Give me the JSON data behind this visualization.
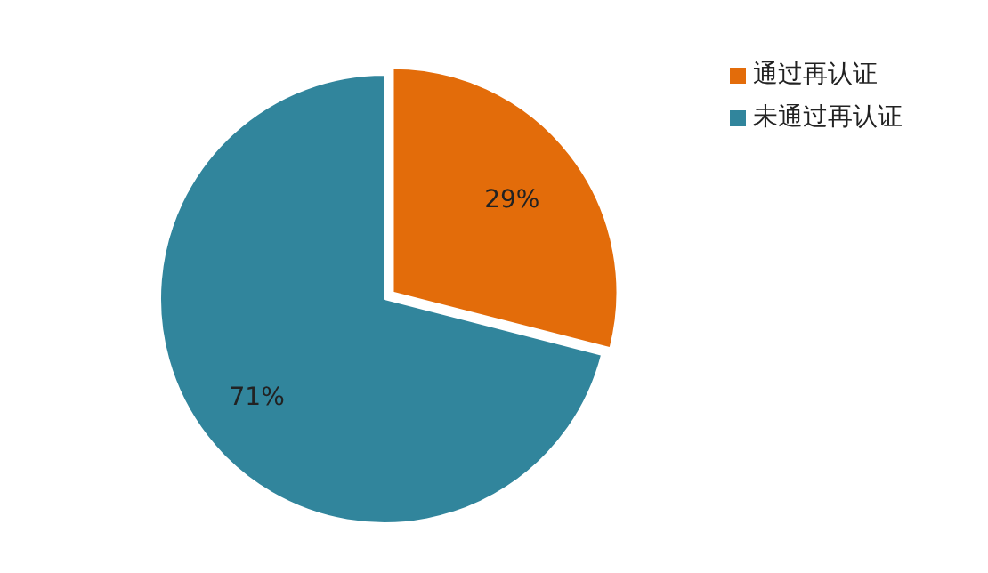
{
  "chart_data": {
    "type": "pie",
    "categories": [
      "通过再认证",
      "未通过再认证"
    ],
    "values": [
      29,
      71
    ],
    "colors": [
      "#e36c0a",
      "#31859c"
    ],
    "value_labels": [
      "29%",
      "71%"
    ],
    "legend": "top right"
  }
}
